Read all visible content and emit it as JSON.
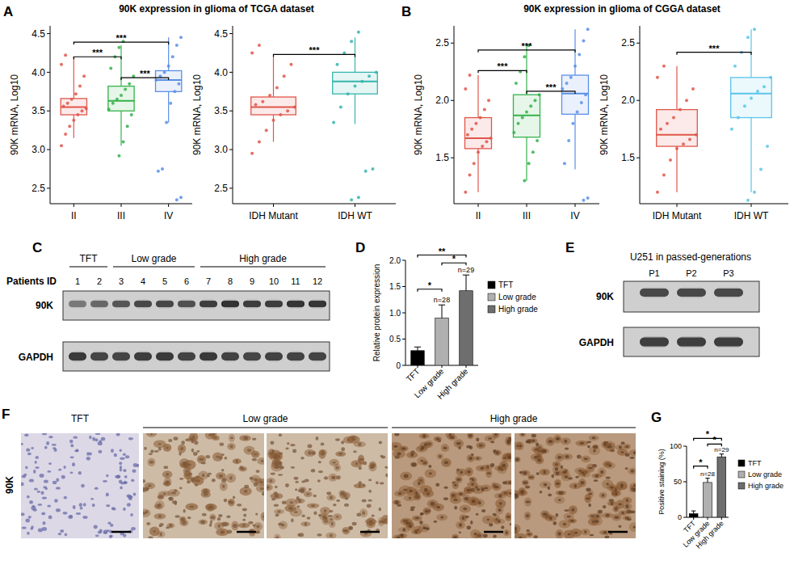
{
  "figure": {
    "panel_labels": [
      "A",
      "B",
      "C",
      "D",
      "E",
      "F",
      "G"
    ],
    "panel_titles": [
      "90K expression in glioma of TCGA dataset",
      "90K expression in glioma of CGGA dataset"
    ]
  },
  "chart_data": [
    {
      "type": "box",
      "y_label": "90K mRNA, Log10",
      "categories": [
        "II",
        "III",
        "IV"
      ],
      "colors": [
        "#e0564a",
        "#34b24a",
        "#5b8fe6"
      ],
      "ylim": [
        2.3,
        4.6
      ],
      "yticks": [
        2.5,
        {
          "value": 3,
          "label": "3.0"
        },
        3.5,
        {
          "value": 4,
          "label": "4.0"
        },
        4.5
      ],
      "boxes": [
        {
          "min": 3.15,
          "q1": 3.45,
          "median": 3.55,
          "q3": 3.66,
          "max": 4.2,
          "points": [
            3.05,
            3.2,
            3.3,
            3.38,
            3.45,
            3.5,
            3.53,
            3.56,
            3.6,
            3.65,
            3.72,
            3.82,
            3.95,
            4.1,
            4.22
          ]
        },
        {
          "min": 3.05,
          "q1": 3.5,
          "median": 3.63,
          "q3": 3.82,
          "max": 4.35,
          "points": [
            2.92,
            3.1,
            3.3,
            3.45,
            3.52,
            3.6,
            3.65,
            3.7,
            3.78,
            3.85,
            3.95,
            4.05,
            4.2,
            4.32,
            4.4
          ]
        },
        {
          "min": 3.35,
          "q1": 3.75,
          "median": 3.9,
          "q3": 4.02,
          "max": 4.45,
          "points": [
            2.35,
            2.38,
            2.72,
            2.75,
            3.35,
            3.6,
            3.75,
            3.85,
            3.9,
            3.95,
            4.0,
            4.08,
            4.2,
            4.35,
            4.45
          ]
        }
      ],
      "annotations": [
        {
          "between": [
            "II",
            "IV"
          ],
          "y": 4.39,
          "label": "***"
        },
        {
          "between": [
            "II",
            "III"
          ],
          "y": 4.2,
          "label": "***"
        },
        {
          "between": [
            "III",
            "IV"
          ],
          "y": 3.93,
          "label": "***"
        }
      ]
    },
    {
      "type": "box",
      "y_label": "90K mRNA, Log10",
      "categories": [
        "IDH Mutant",
        "IDH WT"
      ],
      "colors": [
        "#e0564a",
        "#35b5ad"
      ],
      "ylim": [
        2.3,
        4.6
      ],
      "yticks": [
        2.5,
        {
          "value": 3,
          "label": "3.0"
        },
        3.5,
        {
          "value": 4,
          "label": "4.0"
        },
        4.5
      ],
      "boxes": [
        {
          "min": 3.1,
          "q1": 3.45,
          "median": 3.55,
          "q3": 3.68,
          "max": 4.2,
          "points": [
            2.95,
            3.1,
            3.25,
            3.38,
            3.45,
            3.5,
            3.55,
            3.58,
            3.62,
            3.7,
            3.8,
            3.95,
            4.1,
            4.25,
            4.35
          ]
        },
        {
          "min": 3.33,
          "q1": 3.72,
          "median": 3.88,
          "q3": 4.0,
          "max": 4.45,
          "points": [
            2.35,
            2.38,
            2.72,
            2.75,
            3.35,
            3.55,
            3.72,
            3.82,
            3.88,
            3.95,
            4.0,
            4.1,
            4.25,
            4.4,
            4.52
          ]
        }
      ],
      "annotations": [
        {
          "between": [
            "IDH Mutant",
            "IDH WT"
          ],
          "y": 4.23,
          "label": "***"
        }
      ]
    },
    {
      "type": "box",
      "y_label": "90K mRNA, Log10",
      "categories": [
        "II",
        "III",
        "IV"
      ],
      "colors": [
        "#e0564a",
        "#34b24a",
        "#5b8fe6"
      ],
      "ylim": [
        1.1,
        2.65
      ],
      "yticks": [
        1.5,
        {
          "value": 2,
          "label": "2.0"
        },
        2.5
      ],
      "boxes": [
        {
          "min": 1.2,
          "q1": 1.58,
          "median": 1.67,
          "q3": 1.85,
          "max": 2.22,
          "points": [
            1.2,
            1.35,
            1.45,
            1.55,
            1.6,
            1.64,
            1.67,
            1.7,
            1.75,
            1.8,
            1.85,
            1.92,
            2.0,
            2.1,
            2.22
          ]
        },
        {
          "min": 1.3,
          "q1": 1.68,
          "median": 1.87,
          "q3": 2.05,
          "max": 2.48,
          "points": [
            1.3,
            1.45,
            1.55,
            1.65,
            1.72,
            1.8,
            1.85,
            1.9,
            1.95,
            2.0,
            2.05,
            2.15,
            2.25,
            2.38,
            2.48
          ]
        },
        {
          "min": 1.4,
          "q1": 1.88,
          "median": 2.06,
          "q3": 2.22,
          "max": 2.62,
          "points": [
            1.13,
            1.15,
            1.45,
            1.65,
            1.8,
            1.9,
            1.98,
            2.05,
            2.1,
            2.15,
            2.2,
            2.3,
            2.4,
            2.52,
            2.62
          ]
        }
      ],
      "annotations": [
        {
          "between": [
            "II",
            "IV"
          ],
          "y": 2.44,
          "label": "***"
        },
        {
          "between": [
            "II",
            "III"
          ],
          "y": 2.26,
          "label": "***"
        },
        {
          "between": [
            "III",
            "IV"
          ],
          "y": 2.08,
          "label": "***"
        }
      ]
    },
    {
      "type": "box",
      "y_label": "90K mRNA, Log10",
      "categories": [
        "IDH Mutant",
        "IDH WT"
      ],
      "colors": [
        "#e0564a",
        "#58c6ea"
      ],
      "ylim": [
        1.1,
        2.65
      ],
      "yticks": [
        1.5,
        {
          "value": 2,
          "label": "2.0"
        },
        2.5
      ],
      "boxes": [
        {
          "min": 1.2,
          "q1": 1.6,
          "median": 1.7,
          "q3": 1.92,
          "max": 2.3,
          "points": [
            1.2,
            1.35,
            1.48,
            1.58,
            1.62,
            1.66,
            1.7,
            1.75,
            1.8,
            1.85,
            1.92,
            2.0,
            2.1,
            2.2,
            2.3
          ]
        },
        {
          "min": 1.2,
          "q1": 1.85,
          "median": 2.06,
          "q3": 2.2,
          "max": 2.62,
          "points": [
            1.13,
            1.2,
            1.4,
            1.6,
            1.75,
            1.85,
            1.95,
            2.02,
            2.08,
            2.12,
            2.2,
            2.3,
            2.42,
            2.55,
            2.62
          ]
        }
      ],
      "annotations": [
        {
          "between": [
            "IDH Mutant",
            "IDH WT"
          ],
          "y": 2.42,
          "label": "***"
        }
      ]
    },
    {
      "type": "bar",
      "y_label": "Relative protein expression",
      "categories": [
        "TFT",
        "Low grade",
        "High grade"
      ],
      "values": [
        0.28,
        0.9,
        1.42
      ],
      "errors": [
        0.07,
        0.25,
        0.3
      ],
      "colors": [
        "#000000",
        "#b0b0b0",
        "#6e6e6e"
      ],
      "ylim": [
        0,
        2
      ],
      "yticks": [
        0,
        0.5,
        {
          "value": 1,
          "label": "1.0"
        },
        1.5,
        {
          "value": 2,
          "label": "2.0"
        }
      ],
      "legend": "right",
      "n_labels": [
        null,
        "n=28",
        "n=29"
      ],
      "annotations": [
        {
          "between": [
            "TFT",
            "Low grade"
          ],
          "y": 1.45,
          "label": "*"
        },
        {
          "between": [
            "Low grade",
            "High grade"
          ],
          "y": 1.95,
          "label": "*"
        },
        {
          "between": [
            "TFT",
            "High grade"
          ],
          "y": 2.1,
          "label": "**"
        }
      ]
    },
    {
      "type": "bar",
      "y_label": "Positive staining (%)",
      "categories": [
        "TFT",
        "Low grade",
        "High grade"
      ],
      "values": [
        5,
        49,
        85
      ],
      "errors": [
        4,
        6,
        4
      ],
      "colors": [
        "#000000",
        "#b0b0b0",
        "#6e6e6e"
      ],
      "ylim": [
        0,
        100
      ],
      "yticks": [
        0,
        50,
        100
      ],
      "legend": "right",
      "n_labels": [
        null,
        "n=28",
        "n=29"
      ],
      "annotations": [
        {
          "between": [
            "TFT",
            "Low grade"
          ],
          "y": 72,
          "label": "*"
        },
        {
          "between": [
            "Low grade",
            "High grade"
          ],
          "y": 103,
          "label": "*"
        },
        {
          "between": [
            "TFT",
            "High grade"
          ],
          "y": 111,
          "label": "*"
        }
      ]
    }
  ],
  "blot_c": {
    "id_label": "Patients ID",
    "rows": [
      "90K",
      "GAPDH"
    ],
    "groups": [
      {
        "label": "TFT",
        "lanes": [
          "1",
          "2"
        ]
      },
      {
        "label": "Low grade",
        "lanes": [
          "3",
          "4",
          "5",
          "6"
        ]
      },
      {
        "label": "High grade",
        "lanes": [
          "7",
          "8",
          "9",
          "10",
          "11",
          "12"
        ]
      }
    ]
  },
  "blot_e": {
    "title": "U251 in passed-generations",
    "lanes": [
      "P1",
      "P2",
      "P3"
    ],
    "rows": [
      "90K",
      "GAPDH"
    ]
  },
  "ihc": {
    "row_label": "90K",
    "groups": [
      "TFT",
      "Low grade",
      "High grade"
    ]
  }
}
